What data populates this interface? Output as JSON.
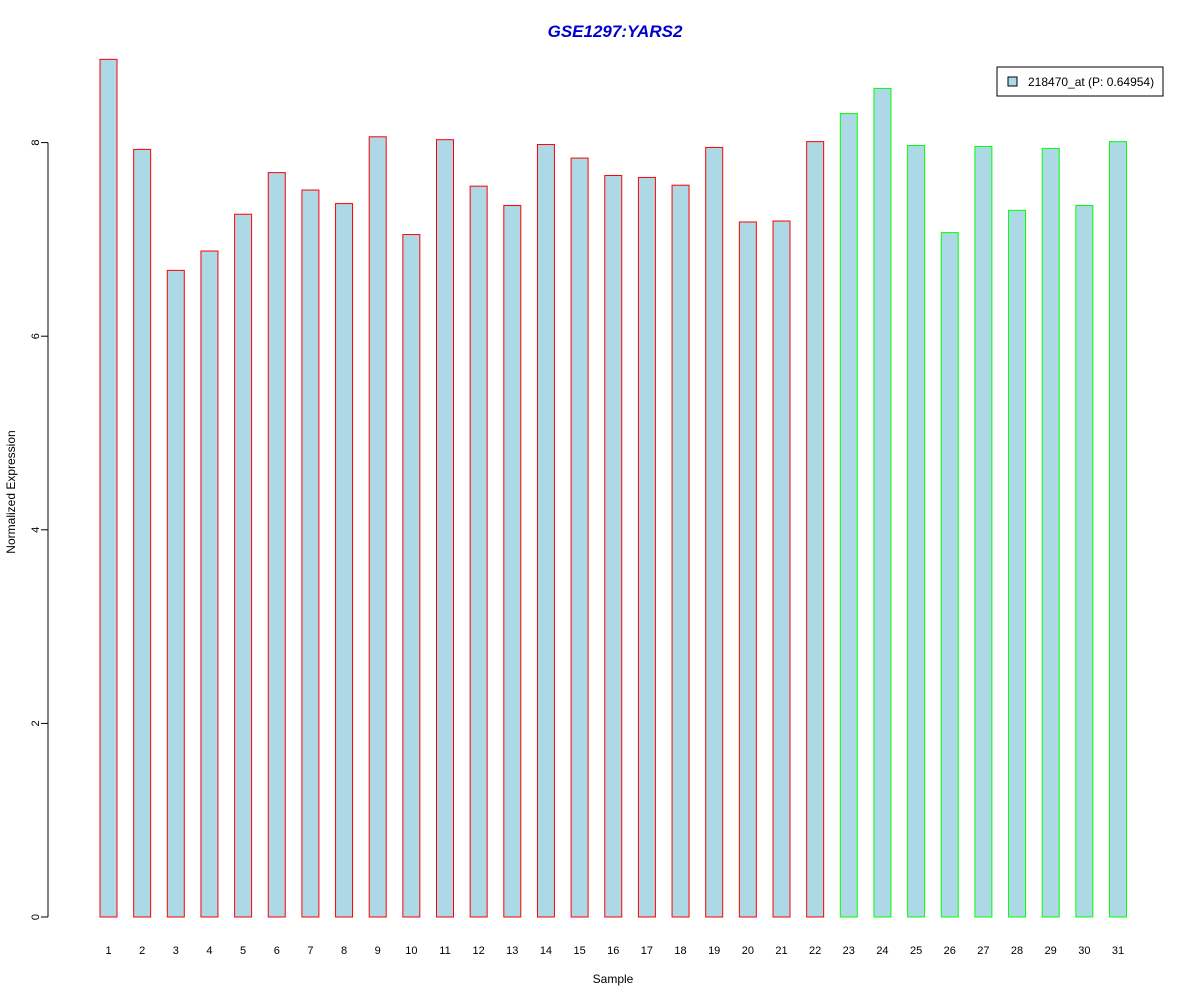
{
  "chart_data": {
    "type": "bar",
    "title": "GSE1297:YARS2",
    "xlabel": "Sample",
    "ylabel": "Normalized Expression",
    "ylim": [
      0,
      8.9
    ],
    "yticks": [
      0,
      2,
      4,
      6,
      8
    ],
    "grid": false,
    "legend_position": "top-right",
    "legend": [
      {
        "label": "218470_at (P: 0.64954)",
        "fill": "#add8e6"
      }
    ],
    "categories": [
      "1",
      "2",
      "3",
      "4",
      "5",
      "6",
      "7",
      "8",
      "9",
      "10",
      "11",
      "12",
      "13",
      "14",
      "15",
      "16",
      "17",
      "18",
      "19",
      "20",
      "21",
      "22",
      "23",
      "24",
      "25",
      "26",
      "27",
      "28",
      "29",
      "30",
      "31"
    ],
    "values": [
      8.86,
      7.93,
      6.68,
      6.88,
      7.26,
      7.69,
      7.51,
      7.37,
      8.06,
      7.05,
      8.03,
      7.55,
      7.35,
      7.98,
      7.84,
      7.66,
      7.64,
      7.56,
      7.95,
      7.18,
      7.19,
      8.01,
      8.3,
      8.56,
      7.97,
      7.07,
      7.96,
      7.3,
      7.94,
      7.35,
      8.01
    ],
    "groups": [
      "red",
      "red",
      "red",
      "red",
      "red",
      "red",
      "red",
      "red",
      "red",
      "red",
      "red",
      "red",
      "red",
      "red",
      "red",
      "red",
      "red",
      "red",
      "red",
      "red",
      "red",
      "red",
      "green",
      "green",
      "green",
      "green",
      "green",
      "green",
      "green",
      "green",
      "green"
    ],
    "colors": {
      "bar_fill": "#add8e6",
      "group_red": "#ff0000",
      "group_green": "#00ff00",
      "title": "#0000cd",
      "axis": "#000000"
    }
  }
}
